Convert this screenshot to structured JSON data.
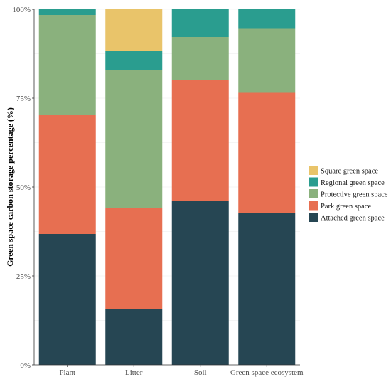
{
  "chart_data": {
    "type": "bar",
    "stacked": true,
    "normalized": true,
    "ylabel": "Green space carbon storage percentage (%)",
    "xlabel": "",
    "ylim": [
      0,
      100
    ],
    "yticks": [
      0,
      25,
      50,
      75,
      100
    ],
    "ytick_labels": [
      "0%",
      "25%",
      "50%",
      "75%",
      "100%"
    ],
    "categories": [
      "Plant",
      "Litter",
      "Soil",
      "Green space ecosystem"
    ],
    "series": [
      {
        "name": "Attached green space",
        "color": "#264653",
        "values": [
          36.8,
          15.7,
          46.2,
          42.7
        ]
      },
      {
        "name": "Park green space",
        "color": "#E76F51",
        "values": [
          33.6,
          28.4,
          34.0,
          33.8
        ]
      },
      {
        "name": "Protective green space",
        "color": "#8AB17D",
        "values": [
          28.0,
          38.9,
          12.0,
          18.0
        ]
      },
      {
        "name": "Regional green space",
        "color": "#2A9D8F",
        "values": [
          1.6,
          5.2,
          7.8,
          5.5
        ]
      },
      {
        "name": "Square green space",
        "color": "#E9C46A",
        "values": [
          0,
          11.8,
          0,
          0
        ]
      }
    ],
    "legend_order": [
      "Square green space",
      "Regional green space",
      "Protective green space",
      "Park green space",
      "Attached green space"
    ],
    "legend_position": "right",
    "grid": true
  }
}
